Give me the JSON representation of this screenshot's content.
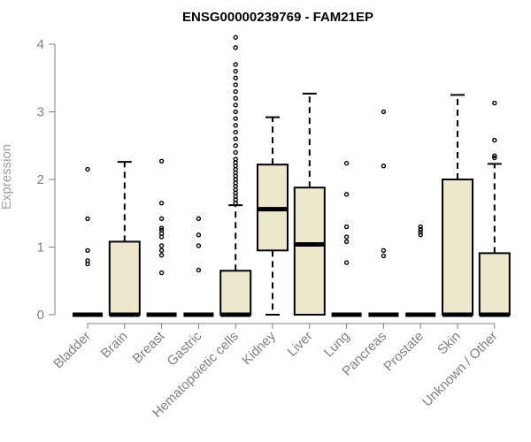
{
  "chart_data": {
    "type": "boxplot",
    "title": "ENSG00000239769 - FAM21EP",
    "xlabel": "",
    "ylabel": "Expression",
    "ylim": [
      0,
      4
    ],
    "yticks": [
      0,
      1,
      2,
      3,
      4
    ],
    "grid": false,
    "legend": "none",
    "colors": {
      "box_fill": "#ede7ce",
      "stroke": "#000000",
      "axis": "#808080"
    },
    "categories": [
      "Bladder",
      "Brain",
      "Breast",
      "Gastric",
      "Hematopoietic cells",
      "Kidney",
      "Liver",
      "Lung",
      "Pancreas",
      "Prostate",
      "Skin",
      "Unknown / Other"
    ],
    "boxes": [
      {
        "category": "Bladder",
        "min": 0,
        "q1": 0,
        "median": 0,
        "q3": 0,
        "max": 0,
        "outliers": [
          0.75,
          0.8,
          0.95,
          1.42,
          2.15
        ]
      },
      {
        "category": "Brain",
        "min": 0,
        "q1": 0,
        "median": 0,
        "q3": 1.08,
        "max": 2.26,
        "outliers": []
      },
      {
        "category": "Breast",
        "min": 0,
        "q1": 0,
        "median": 0,
        "q3": 0,
        "max": 0,
        "outliers": [
          0.62,
          0.88,
          0.95,
          1.02,
          1.15,
          1.2,
          1.25,
          1.28,
          1.42,
          1.65,
          2.27
        ]
      },
      {
        "category": "Gastric",
        "min": 0,
        "q1": 0,
        "median": 0,
        "q3": 0,
        "max": 0,
        "outliers": [
          0.66,
          1.02,
          1.18,
          1.42
        ]
      },
      {
        "category": "Hematopoietic cells",
        "min": 0,
        "q1": 0,
        "median": 0,
        "q3": 0.65,
        "max": 1.62,
        "outliers": [
          1.65,
          1.7,
          1.75,
          1.8,
          1.85,
          1.9,
          1.95,
          2.0,
          2.05,
          2.1,
          2.15,
          2.2,
          2.25,
          2.3,
          2.4,
          2.5,
          2.6,
          2.7,
          2.8,
          2.9,
          3.0,
          3.1,
          3.2,
          3.3,
          3.4,
          3.5,
          3.6,
          3.7,
          3.95,
          4.1
        ]
      },
      {
        "category": "Kidney",
        "min": 0,
        "q1": 0.95,
        "median": 1.56,
        "q3": 2.22,
        "max": 2.92,
        "outliers": []
      },
      {
        "category": "Liver",
        "min": 0,
        "q1": 0,
        "median": 1.04,
        "q3": 1.88,
        "max": 3.27,
        "outliers": []
      },
      {
        "category": "Lung",
        "min": 0,
        "q1": 0,
        "median": 0,
        "q3": 0,
        "max": 0,
        "outliers": [
          0.77,
          1.08,
          1.15,
          1.3,
          1.78,
          2.24
        ]
      },
      {
        "category": "Pancreas",
        "min": 0,
        "q1": 0,
        "median": 0,
        "q3": 0,
        "max": 0,
        "outliers": [
          0.87,
          0.95,
          2.2,
          3.0
        ]
      },
      {
        "category": "Prostate",
        "min": 0,
        "q1": 0,
        "median": 0,
        "q3": 0,
        "max": 0,
        "outliers": [
          1.18,
          1.22,
          1.26,
          1.3
        ]
      },
      {
        "category": "Skin",
        "min": 0,
        "q1": 0,
        "median": 0,
        "q3": 2.0,
        "max": 3.25,
        "outliers": []
      },
      {
        "category": "Unknown / Other",
        "min": 0,
        "q1": 0,
        "median": 0,
        "q3": 0.91,
        "max": 2.23,
        "outliers": [
          2.32,
          2.35,
          2.58,
          3.13
        ]
      }
    ]
  }
}
